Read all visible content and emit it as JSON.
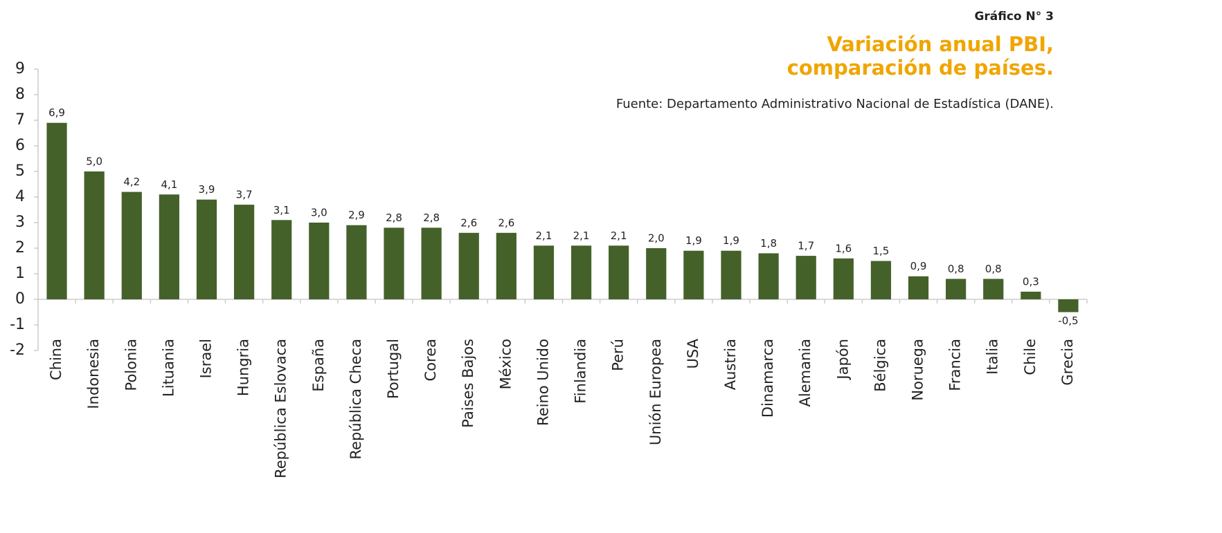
{
  "chart_data": {
    "type": "bar",
    "label": "Gráfico N° 3",
    "title": [
      "Variación anual PBI,",
      "comparación de países."
    ],
    "source": "Fuente: Departamento Administrativo Nacional de Estadística (DANE).",
    "categories": [
      "China",
      "Indonesia",
      "Polonia",
      "Lituania",
      "Israel",
      "Hungria",
      "República Eslovaca",
      "España",
      "República Checa",
      "Portugal",
      "Corea",
      "Paises Bajos",
      "México",
      "Reino Unido",
      "Finlandia",
      "Perú",
      "Unión Europea",
      "USA",
      "Austria",
      "Dinamarca",
      "Alemania",
      "Japón",
      "Bélgica",
      "Noruega",
      "Francia",
      "Italia",
      "Chile",
      "Grecia"
    ],
    "values": [
      6.9,
      5.0,
      4.2,
      4.1,
      3.9,
      3.7,
      3.1,
      3.0,
      2.9,
      2.8,
      2.8,
      2.6,
      2.6,
      2.1,
      2.1,
      2.1,
      2.0,
      1.9,
      1.9,
      1.8,
      1.7,
      1.6,
      1.5,
      0.9,
      0.8,
      0.8,
      0.3,
      -0.5
    ],
    "value_labels": [
      "6,9",
      "5,0",
      "4,2",
      "4,1",
      "3,9",
      "3,7",
      "3,1",
      "3,0",
      "2,9",
      "2,8",
      "2,8",
      "2,6",
      "2,6",
      "2,1",
      "2,1",
      "2,1",
      "2,0",
      "1,9",
      "1,9",
      "1,8",
      "1,7",
      "1,6",
      "1,5",
      "0,9",
      "0,8",
      "0,8",
      "0,3",
      "-0,5"
    ],
    "color": "#44612a",
    "ylim": [
      -2,
      9
    ],
    "yticks": [
      -2,
      -1,
      0,
      1,
      2,
      3,
      4,
      5,
      6,
      7,
      8,
      9
    ],
    "grid": false
  }
}
